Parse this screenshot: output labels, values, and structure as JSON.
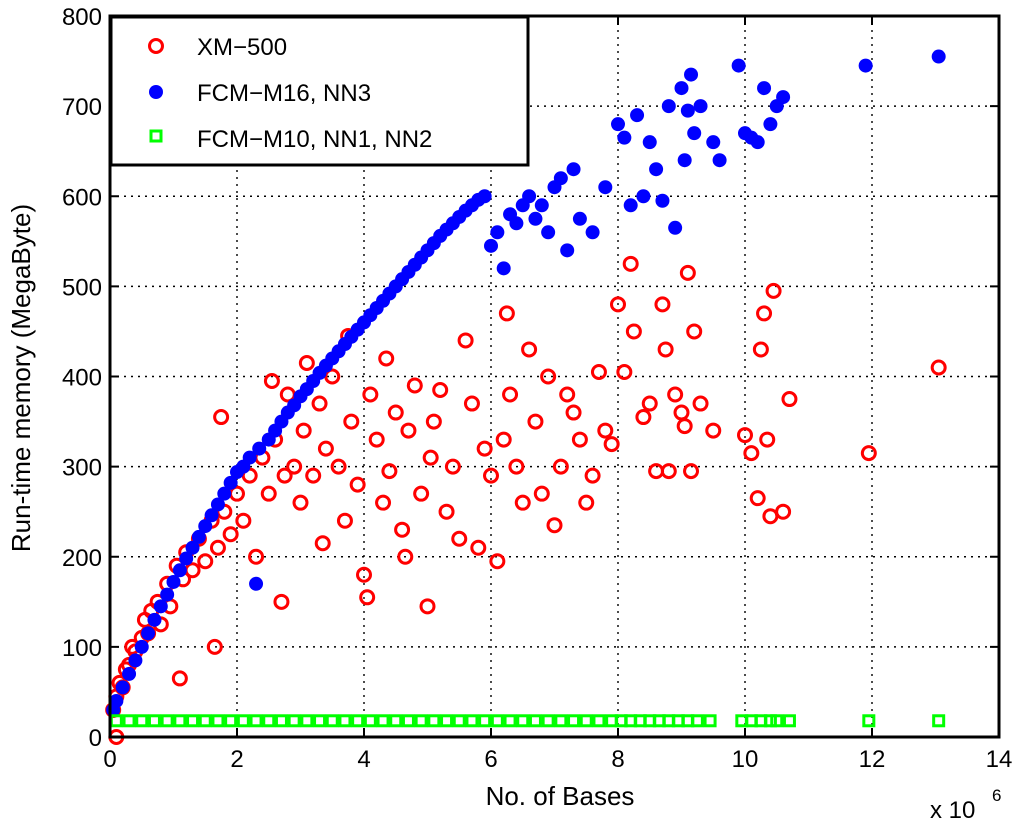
{
  "chart_data": {
    "type": "scatter",
    "title": "",
    "xlabel": "No. of Bases",
    "ylabel": "Run-time memory (MegaByte)",
    "x_multiplier_label": "x 10",
    "x_multiplier_exponent": "6",
    "xlim": [
      0,
      14
    ],
    "ylim": [
      0,
      800
    ],
    "x_ticks": [
      0,
      2,
      4,
      6,
      8,
      10,
      12,
      14
    ],
    "y_ticks": [
      0,
      100,
      200,
      300,
      400,
      500,
      600,
      700,
      800
    ],
    "x_tick_labels": [
      "0",
      "2",
      "4",
      "6",
      "8",
      "10",
      "12",
      "14"
    ],
    "y_tick_labels": [
      "0",
      "100",
      "200",
      "300",
      "400",
      "500",
      "600",
      "700",
      "800"
    ],
    "grid": true,
    "legend_position": "top-left",
    "series": [
      {
        "name": "XM−500",
        "marker": "open-circle",
        "color": "#ff0000",
        "points": [
          [
            0.05,
            30
          ],
          [
            0.1,
            45
          ],
          [
            0.15,
            60
          ],
          [
            0.1,
            0
          ],
          [
            0.2,
            55
          ],
          [
            0.25,
            75
          ],
          [
            0.3,
            80
          ],
          [
            0.35,
            100
          ],
          [
            0.4,
            95
          ],
          [
            0.5,
            110
          ],
          [
            0.55,
            130
          ],
          [
            0.6,
            115
          ],
          [
            0.65,
            140
          ],
          [
            0.75,
            150
          ],
          [
            0.8,
            125
          ],
          [
            0.9,
            170
          ],
          [
            0.95,
            145
          ],
          [
            1.05,
            190
          ],
          [
            1.1,
            65
          ],
          [
            1.15,
            175
          ],
          [
            1.2,
            205
          ],
          [
            1.3,
            185
          ],
          [
            1.4,
            220
          ],
          [
            1.5,
            195
          ],
          [
            1.6,
            240
          ],
          [
            1.65,
            100
          ],
          [
            1.7,
            210
          ],
          [
            1.75,
            355
          ],
          [
            1.8,
            250
          ],
          [
            1.9,
            225
          ],
          [
            2.0,
            270
          ],
          [
            2.1,
            240
          ],
          [
            2.2,
            290
          ],
          [
            2.3,
            200
          ],
          [
            2.4,
            310
          ],
          [
            2.5,
            270
          ],
          [
            2.55,
            395
          ],
          [
            2.6,
            330
          ],
          [
            2.7,
            150
          ],
          [
            2.75,
            290
          ],
          [
            2.8,
            380
          ],
          [
            2.9,
            300
          ],
          [
            3.0,
            260
          ],
          [
            3.05,
            340
          ],
          [
            3.1,
            415
          ],
          [
            3.2,
            290
          ],
          [
            3.3,
            370
          ],
          [
            3.35,
            215
          ],
          [
            3.4,
            320
          ],
          [
            3.5,
            400
          ],
          [
            3.6,
            300
          ],
          [
            3.7,
            240
          ],
          [
            3.75,
            445
          ],
          [
            3.8,
            350
          ],
          [
            3.9,
            280
          ],
          [
            4.0,
            180
          ],
          [
            4.05,
            155
          ],
          [
            4.1,
            380
          ],
          [
            4.2,
            330
          ],
          [
            4.3,
            260
          ],
          [
            4.35,
            420
          ],
          [
            4.4,
            295
          ],
          [
            4.5,
            360
          ],
          [
            4.6,
            230
          ],
          [
            4.65,
            200
          ],
          [
            4.7,
            340
          ],
          [
            4.8,
            390
          ],
          [
            4.9,
            270
          ],
          [
            5.0,
            145
          ],
          [
            5.05,
            310
          ],
          [
            5.1,
            350
          ],
          [
            5.2,
            385
          ],
          [
            5.3,
            250
          ],
          [
            5.4,
            300
          ],
          [
            5.5,
            220
          ],
          [
            5.6,
            440
          ],
          [
            5.7,
            370
          ],
          [
            5.8,
            210
          ],
          [
            5.9,
            320
          ],
          [
            6.0,
            290
          ],
          [
            6.1,
            195
          ],
          [
            6.2,
            330
          ],
          [
            6.25,
            470
          ],
          [
            6.3,
            380
          ],
          [
            6.4,
            300
          ],
          [
            6.5,
            260
          ],
          [
            6.6,
            430
          ],
          [
            6.7,
            350
          ],
          [
            6.8,
            270
          ],
          [
            6.9,
            400
          ],
          [
            7.0,
            235
          ],
          [
            7.1,
            300
          ],
          [
            7.2,
            380
          ],
          [
            7.3,
            360
          ],
          [
            7.4,
            330
          ],
          [
            7.5,
            260
          ],
          [
            7.6,
            290
          ],
          [
            7.7,
            405
          ],
          [
            7.8,
            340
          ],
          [
            7.9,
            325
          ],
          [
            8.0,
            480
          ],
          [
            8.1,
            405
          ],
          [
            8.2,
            525
          ],
          [
            8.25,
            450
          ],
          [
            8.4,
            355
          ],
          [
            8.5,
            370
          ],
          [
            8.6,
            295
          ],
          [
            8.7,
            480
          ],
          [
            8.75,
            430
          ],
          [
            8.8,
            295
          ],
          [
            8.9,
            380
          ],
          [
            9.0,
            360
          ],
          [
            9.05,
            345
          ],
          [
            9.1,
            515
          ],
          [
            9.15,
            295
          ],
          [
            9.2,
            450
          ],
          [
            9.3,
            370
          ],
          [
            9.5,
            340
          ],
          [
            10.0,
            335
          ],
          [
            10.1,
            315
          ],
          [
            10.2,
            265
          ],
          [
            10.25,
            430
          ],
          [
            10.3,
            470
          ],
          [
            10.35,
            330
          ],
          [
            10.4,
            245
          ],
          [
            10.45,
            495
          ],
          [
            10.6,
            250
          ],
          [
            10.7,
            375
          ],
          [
            11.95,
            315
          ],
          [
            13.05,
            410
          ]
        ]
      },
      {
        "name": "FCM−M16, NN3",
        "marker": "filled-circle",
        "color": "#0000ff",
        "points": [
          [
            0.05,
            30
          ],
          [
            0.1,
            40
          ],
          [
            0.2,
            55
          ],
          [
            0.3,
            70
          ],
          [
            0.4,
            85
          ],
          [
            0.5,
            100
          ],
          [
            0.6,
            115
          ],
          [
            0.7,
            130
          ],
          [
            0.8,
            145
          ],
          [
            0.9,
            158
          ],
          [
            1.0,
            172
          ],
          [
            1.1,
            185
          ],
          [
            1.2,
            198
          ],
          [
            1.3,
            210
          ],
          [
            1.4,
            222
          ],
          [
            1.5,
            234
          ],
          [
            1.6,
            246
          ],
          [
            1.7,
            258
          ],
          [
            1.8,
            270
          ],
          [
            1.9,
            282
          ],
          [
            2.0,
            294
          ],
          [
            2.1,
            300
          ],
          [
            2.2,
            310
          ],
          [
            2.3,
            170
          ],
          [
            2.35,
            320
          ],
          [
            2.5,
            330
          ],
          [
            2.6,
            340
          ],
          [
            2.7,
            350
          ],
          [
            2.8,
            360
          ],
          [
            2.9,
            368
          ],
          [
            3.0,
            378
          ],
          [
            3.1,
            386
          ],
          [
            3.2,
            395
          ],
          [
            3.3,
            404
          ],
          [
            3.4,
            412
          ],
          [
            3.5,
            420
          ],
          [
            3.6,
            428
          ],
          [
            3.7,
            436
          ],
          [
            3.8,
            444
          ],
          [
            3.9,
            452
          ],
          [
            4.0,
            460
          ],
          [
            4.1,
            468
          ],
          [
            4.2,
            476
          ],
          [
            4.3,
            484
          ],
          [
            4.4,
            492
          ],
          [
            4.5,
            500
          ],
          [
            4.6,
            508
          ],
          [
            4.7,
            516
          ],
          [
            4.8,
            524
          ],
          [
            4.9,
            532
          ],
          [
            5.0,
            540
          ],
          [
            5.1,
            548
          ],
          [
            5.2,
            556
          ],
          [
            5.3,
            563
          ],
          [
            5.4,
            570
          ],
          [
            5.5,
            577
          ],
          [
            5.6,
            584
          ],
          [
            5.7,
            590
          ],
          [
            5.8,
            596
          ],
          [
            5.9,
            600
          ],
          [
            6.0,
            545
          ],
          [
            6.1,
            560
          ],
          [
            6.2,
            520
          ],
          [
            6.3,
            580
          ],
          [
            6.4,
            570
          ],
          [
            6.5,
            590
          ],
          [
            6.6,
            600
          ],
          [
            6.7,
            575
          ],
          [
            6.8,
            590
          ],
          [
            6.9,
            560
          ],
          [
            7.0,
            610
          ],
          [
            7.1,
            620
          ],
          [
            7.2,
            540
          ],
          [
            7.3,
            630
          ],
          [
            7.4,
            575
          ],
          [
            7.6,
            560
          ],
          [
            7.8,
            610
          ],
          [
            8.0,
            680
          ],
          [
            8.1,
            665
          ],
          [
            8.2,
            590
          ],
          [
            8.3,
            690
          ],
          [
            8.4,
            600
          ],
          [
            8.5,
            660
          ],
          [
            8.6,
            630
          ],
          [
            8.7,
            595
          ],
          [
            8.8,
            700
          ],
          [
            8.9,
            565
          ],
          [
            9.0,
            720
          ],
          [
            9.05,
            640
          ],
          [
            9.1,
            695
          ],
          [
            9.15,
            735
          ],
          [
            9.2,
            670
          ],
          [
            9.3,
            700
          ],
          [
            9.5,
            660
          ],
          [
            9.6,
            640
          ],
          [
            9.9,
            745
          ],
          [
            10.0,
            670
          ],
          [
            10.1,
            665
          ],
          [
            10.2,
            660
          ],
          [
            10.3,
            720
          ],
          [
            10.4,
            680
          ],
          [
            10.5,
            700
          ],
          [
            10.6,
            710
          ],
          [
            11.9,
            745
          ],
          [
            13.05,
            755
          ]
        ]
      },
      {
        "name": "FCM−M10, NN1, NN2",
        "marker": "open-square",
        "color": "#00ff00",
        "points": [
          [
            0.1,
            18
          ],
          [
            0.3,
            18
          ],
          [
            0.5,
            18
          ],
          [
            0.7,
            18
          ],
          [
            0.9,
            18
          ],
          [
            1.1,
            18
          ],
          [
            1.3,
            18
          ],
          [
            1.5,
            18
          ],
          [
            1.7,
            18
          ],
          [
            1.9,
            18
          ],
          [
            2.1,
            18
          ],
          [
            2.3,
            18
          ],
          [
            2.5,
            18
          ],
          [
            2.7,
            18
          ],
          [
            2.9,
            18
          ],
          [
            3.1,
            18
          ],
          [
            3.3,
            18
          ],
          [
            3.5,
            18
          ],
          [
            3.7,
            18
          ],
          [
            3.9,
            18
          ],
          [
            4.1,
            18
          ],
          [
            4.3,
            18
          ],
          [
            4.5,
            18
          ],
          [
            4.7,
            18
          ],
          [
            4.9,
            18
          ],
          [
            5.1,
            18
          ],
          [
            5.3,
            18
          ],
          [
            5.5,
            18
          ],
          [
            5.7,
            18
          ],
          [
            5.9,
            18
          ],
          [
            6.1,
            18
          ],
          [
            6.3,
            18
          ],
          [
            6.5,
            18
          ],
          [
            6.7,
            18
          ],
          [
            6.9,
            18
          ],
          [
            7.1,
            18
          ],
          [
            7.3,
            18
          ],
          [
            7.5,
            18
          ],
          [
            7.7,
            18
          ],
          [
            7.9,
            18
          ],
          [
            8.05,
            18
          ],
          [
            8.2,
            18
          ],
          [
            8.35,
            18
          ],
          [
            8.5,
            18
          ],
          [
            8.65,
            18
          ],
          [
            8.8,
            18
          ],
          [
            8.95,
            18
          ],
          [
            9.1,
            18
          ],
          [
            9.25,
            18
          ],
          [
            9.45,
            18
          ],
          [
            9.95,
            18
          ],
          [
            10.1,
            18
          ],
          [
            10.25,
            18
          ],
          [
            10.4,
            18
          ],
          [
            10.5,
            18
          ],
          [
            10.7,
            18
          ],
          [
            11.95,
            18
          ],
          [
            13.05,
            18
          ]
        ]
      }
    ]
  }
}
